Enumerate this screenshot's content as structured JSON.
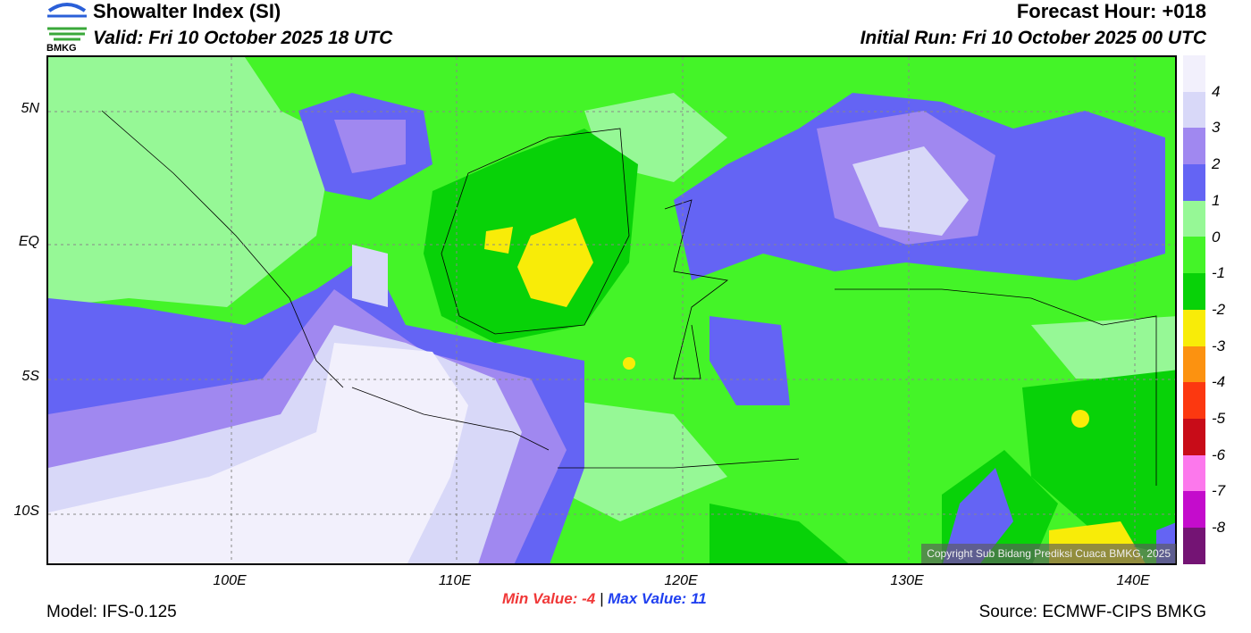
{
  "header": {
    "title": "Showalter Index (SI)",
    "valid": "Valid: Fri 10 October 2025 18 UTC",
    "forecast_hour": "Forecast Hour: +018",
    "initial_run": "Initial Run: Fri 10 October 2025 00 UTC",
    "logo_text": "BMKG"
  },
  "axes": {
    "lat_labels": [
      "5N",
      "EQ",
      "5S",
      "10S"
    ],
    "lon_labels": [
      "100E",
      "110E",
      "120E",
      "130E",
      "140E"
    ]
  },
  "colorbar": {
    "labels": [
      "4",
      "3",
      "2",
      "1",
      "0",
      "-1",
      "-2",
      "-3",
      "-4",
      "-5",
      "-6",
      "-7",
      "-8"
    ],
    "colors": [
      "#f2f0fc",
      "#d8d8f8",
      "#a088f0",
      "#6464f4",
      "#96f896",
      "#44f428",
      "#08d208",
      "#f8ec08",
      "#fc9210",
      "#fc3810",
      "#c80c18",
      "#fc78ec",
      "#c40ccc",
      "#741474"
    ]
  },
  "stats": {
    "min_label": "Min Value:",
    "min": "-4",
    "sep": "|",
    "max_label": "Max Value:",
    "max": "11"
  },
  "footer": {
    "model": "Model: IFS-0.125",
    "source": "Source: ECMWF-CIPS BMKG",
    "copyright": "Copyright Sub Bidang Prediksi Cuaca BMKG, 2025"
  }
}
